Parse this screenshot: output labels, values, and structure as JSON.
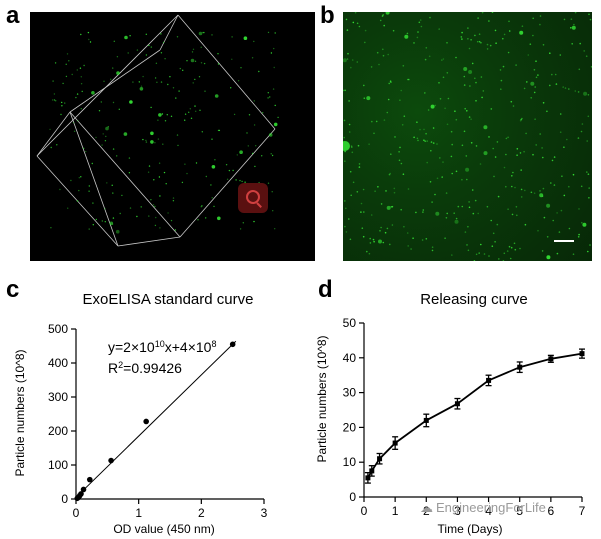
{
  "panels": {
    "a": {
      "letter": "a"
    },
    "b": {
      "letter": "b"
    },
    "c": {
      "letter": "c"
    },
    "d": {
      "letter": "d"
    }
  },
  "watermark": {
    "text": "EngineeringForLife",
    "icon": "wechat-icon"
  },
  "colors": {
    "fluorescence": "#33dd33",
    "axis": "#000000",
    "background_a": "#000000",
    "background_b": "#0a3a0a"
  },
  "chart_data": [
    {
      "type": "scatter",
      "title": "ExoELISA standard curve",
      "xlabel": "OD value (450 nm)",
      "ylabel": "Particle numbers (10^8)",
      "xlim": [
        0,
        3
      ],
      "ylim": [
        0,
        500
      ],
      "xticks": [
        0,
        1,
        2,
        3
      ],
      "yticks": [
        0,
        100,
        200,
        300,
        400,
        500
      ],
      "x": [
        0.02,
        0.04,
        0.06,
        0.08,
        0.12,
        0.22,
        0.56,
        1.12,
        2.5
      ],
      "y": [
        2,
        5,
        10,
        15,
        28,
        57,
        113,
        228,
        455
      ],
      "fit": {
        "slope": 180,
        "intercept": 5
      },
      "annotations": {
        "equation_prefix": "y=2×10",
        "equation_exp1": "10",
        "equation_mid": "x+4×10",
        "equation_exp2": "8",
        "r2_prefix": "R",
        "r2_exp": "2",
        "r2_value": "=0.99426"
      }
    },
    {
      "type": "line",
      "title": "Releasing curve",
      "xlabel": "Time (Days)",
      "ylabel": "Particle numbers (10^8)",
      "xlim": [
        0,
        7
      ],
      "ylim": [
        0,
        50
      ],
      "xticks": [
        0,
        1,
        2,
        3,
        4,
        5,
        6,
        7
      ],
      "yticks": [
        0,
        10,
        20,
        30,
        40,
        50
      ],
      "x": [
        0.125,
        0.25,
        0.5,
        1,
        2,
        3,
        4,
        5,
        6,
        7
      ],
      "y": [
        5.5,
        7.5,
        11,
        15.5,
        22,
        26.8,
        33.5,
        37.3,
        39.7,
        41.2
      ],
      "err": [
        1.5,
        1.5,
        1.5,
        1.8,
        1.8,
        1.5,
        1.5,
        1.5,
        1.0,
        1.3
      ]
    }
  ]
}
